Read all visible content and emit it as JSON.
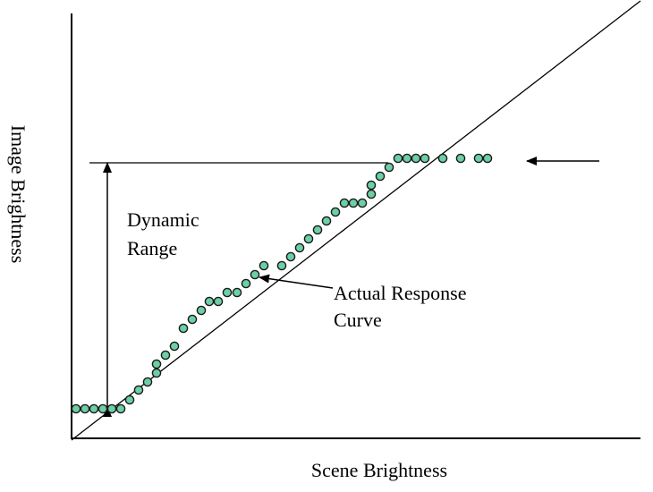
{
  "labels": {
    "x_axis": "Scene Brightness",
    "y_axis": "Image Brightness",
    "dynamic_range_line1": "Dynamic",
    "dynamic_range_line2": "Range",
    "response_line1": "Actual Response",
    "response_line2": "Curve"
  },
  "colors": {
    "dot_fill": "#6ccfa6",
    "dot_stroke": "#1a1a1a",
    "line": "#000000"
  }
}
